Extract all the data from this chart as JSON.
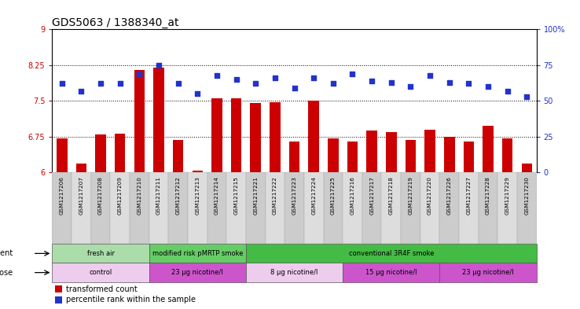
{
  "title": "GDS5063 / 1388340_at",
  "samples": [
    "GSM1217206",
    "GSM1217207",
    "GSM1217208",
    "GSM1217209",
    "GSM1217210",
    "GSM1217211",
    "GSM1217212",
    "GSM1217213",
    "GSM1217214",
    "GSM1217215",
    "GSM1217221",
    "GSM1217222",
    "GSM1217223",
    "GSM1217224",
    "GSM1217225",
    "GSM1217216",
    "GSM1217217",
    "GSM1217218",
    "GSM1217219",
    "GSM1217220",
    "GSM1217226",
    "GSM1217227",
    "GSM1217228",
    "GSM1217229",
    "GSM1217230"
  ],
  "bar_values": [
    6.72,
    6.18,
    6.8,
    6.82,
    8.15,
    8.2,
    6.68,
    6.03,
    7.55,
    7.55,
    7.45,
    7.47,
    6.65,
    7.5,
    6.72,
    6.65,
    6.88,
    6.85,
    6.68,
    6.9,
    6.75,
    6.65,
    6.98,
    6.72,
    6.18
  ],
  "blue_values": [
    62,
    57,
    62,
    62,
    69,
    75,
    62,
    55,
    68,
    65,
    62,
    66,
    59,
    66,
    62,
    69,
    64,
    63,
    60,
    68,
    63,
    62,
    60,
    57,
    53
  ],
  "ylim_left": [
    6,
    9
  ],
  "ylim_right": [
    0,
    100
  ],
  "yticks_left": [
    6,
    6.75,
    7.5,
    8.25,
    9
  ],
  "yticks_right": [
    0,
    25,
    50,
    75,
    100
  ],
  "hlines": [
    6.75,
    7.5,
    8.25
  ],
  "bar_color": "#cc0000",
  "blue_color": "#2233cc",
  "agent_groups": [
    {
      "label": "fresh air",
      "start": 0,
      "end": 5,
      "color": "#aaddaa"
    },
    {
      "label": "modified risk pMRTP smoke",
      "start": 5,
      "end": 10,
      "color": "#66cc66"
    },
    {
      "label": "conventional 3R4F smoke",
      "start": 10,
      "end": 25,
      "color": "#44bb44"
    }
  ],
  "dose_groups": [
    {
      "label": "control",
      "start": 0,
      "end": 5,
      "color": "#eeccee"
    },
    {
      "label": "23 μg nicotine/l",
      "start": 5,
      "end": 10,
      "color": "#cc55cc"
    },
    {
      "label": "8 μg nicotine/l",
      "start": 10,
      "end": 15,
      "color": "#eeccee"
    },
    {
      "label": "15 μg nicotine/l",
      "start": 15,
      "end": 20,
      "color": "#cc55cc"
    },
    {
      "label": "23 μg nicotine/l",
      "start": 20,
      "end": 25,
      "color": "#cc55cc"
    }
  ],
  "legend_bar_label": "transformed count",
  "legend_dot_label": "percentile rank within the sample",
  "agent_label": "agent",
  "dose_label": "dose",
  "tick_box_colors": [
    "#cccccc",
    "#dddddd"
  ]
}
